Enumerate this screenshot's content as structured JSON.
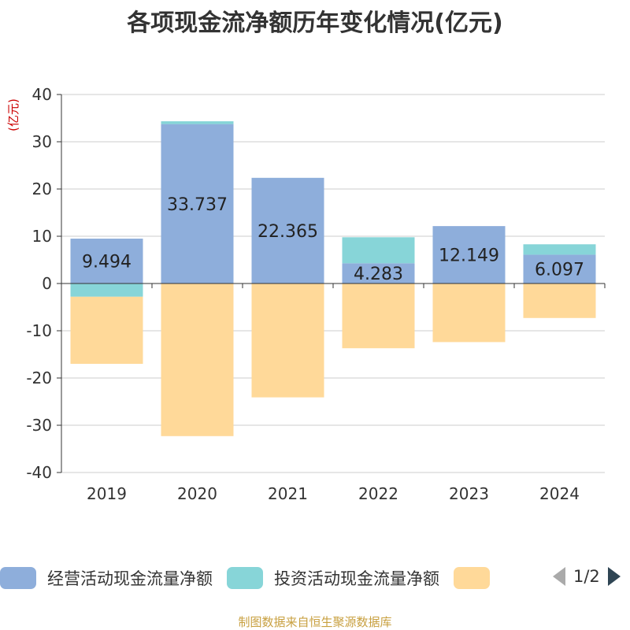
{
  "chart_data": {
    "type": "bar",
    "stacked": true,
    "title": "各项现金流净额历年变化情况(亿元)",
    "ylabel": "(亿元)",
    "categories": [
      "2019",
      "2020",
      "2021",
      "2022",
      "2023",
      "2024"
    ],
    "ylim": [
      -40,
      40
    ],
    "yticks": [
      40,
      30,
      20,
      10,
      0,
      -10,
      -20,
      -30,
      -40
    ],
    "grid": true,
    "legend_position": "bottom",
    "series": [
      {
        "name": "经营活动现金流量净额",
        "color": "#8eaedb",
        "values": [
          9.494,
          33.737,
          22.365,
          4.283,
          12.149,
          6.097
        ],
        "labels": [
          "9.494",
          "33.737",
          "22.365",
          "4.283",
          "12.149",
          "6.097"
        ]
      },
      {
        "name": "投资活动现金流量净额",
        "color": "#87d5d8",
        "values": [
          -2.8,
          0.6,
          0,
          5.5,
          0,
          2.2
        ]
      },
      {
        "name": "",
        "color": "#ffd999",
        "values": [
          -14.2,
          -32.3,
          -24.1,
          -13.7,
          -12.4,
          -7.3
        ]
      }
    ]
  },
  "legend": {
    "pager_label": "1/2"
  },
  "footer": "制图数据来自恒生聚源数据库"
}
